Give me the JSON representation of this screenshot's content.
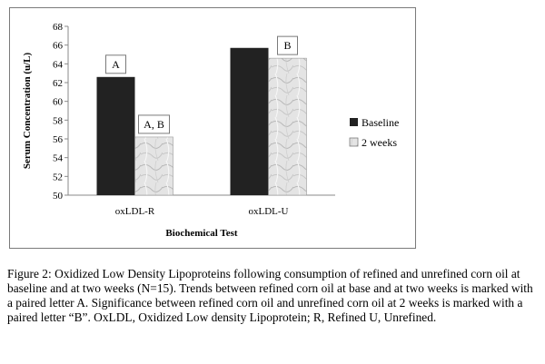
{
  "chart_data": {
    "type": "bar",
    "xlabel": "Biochemical Test",
    "ylabel": "Serum Concentration (u/L)",
    "categories": [
      "oxLDL-R",
      "oxLDL-U"
    ],
    "ylim": [
      50,
      68
    ],
    "yticks": [
      50,
      52,
      54,
      56,
      58,
      60,
      62,
      64,
      66,
      68
    ],
    "grid": false,
    "legend_position": "right",
    "series": [
      {
        "name": "Baseline",
        "values": [
          62.6,
          65.7
        ],
        "color": "#222222",
        "pattern": "solid"
      },
      {
        "name": "2 weeks",
        "values": [
          56.2,
          64.6
        ],
        "color": "#dcdcdc",
        "pattern": "marble"
      }
    ],
    "annotations": [
      {
        "text": "A",
        "category": "oxLDL-R",
        "series": "Baseline"
      },
      {
        "text": "A, B",
        "category": "oxLDL-R",
        "series": "2 weeks"
      },
      {
        "text": "B",
        "category": "oxLDL-U",
        "series": "2 weeks"
      }
    ]
  },
  "caption": "Figure 2: Oxidized Low Density Lipoproteins following consumption of refined and unrefined corn oil at baseline and at two weeks (N=15).  Trends between refined corn oil at base and at two weeks is marked with a paired letter A. Significance between refined corn oil and unrefined corn oil at 2 weeks is marked with a paired letter “B”. OxLDL, Oxidized Low density Lipoprotein; R, Refined U, Unrefined."
}
